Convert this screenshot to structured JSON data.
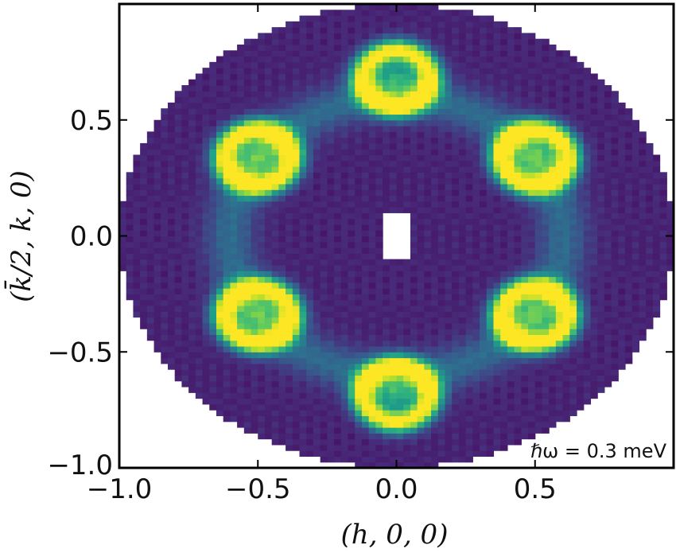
{
  "chart_data": {
    "type": "heatmap",
    "title": "",
    "xlabel": "(h, 0, 0)",
    "ylabel": "(k̄/2, k, 0)",
    "xlim": [
      -1.0,
      1.0
    ],
    "ylim": [
      -1.0,
      1.0
    ],
    "xticks": [
      {
        "value": -1.0,
        "label": "−1.0"
      },
      {
        "value": -0.5,
        "label": "−0.5"
      },
      {
        "value": 0.0,
        "label": "0.0"
      },
      {
        "value": 0.5,
        "label": "0.5"
      }
    ],
    "yticks": [
      {
        "value": -1.0,
        "label": "−1.0"
      },
      {
        "value": -0.5,
        "label": "−0.5"
      },
      {
        "value": 0.0,
        "label": "0.0"
      },
      {
        "value": 0.5,
        "label": "0.5"
      }
    ],
    "annotation": "ℏω = 0.3 meV",
    "colormap": "viridis",
    "grid": false,
    "data_region": {
      "center": [
        0.0,
        0.0
      ],
      "radius": 1.0
    },
    "masked_center": {
      "center": [
        0.0,
        0.0
      ],
      "half_width": 0.04,
      "half_height": 0.09
    },
    "peaks": [
      {
        "h": 0.0,
        "k": 0.68
      },
      {
        "h": 0.5,
        "k": 0.34
      },
      {
        "h": 0.5,
        "k": -0.34
      },
      {
        "h": 0.0,
        "k": -0.68
      },
      {
        "h": -0.5,
        "k": -0.34
      },
      {
        "h": -0.5,
        "k": 0.34
      }
    ],
    "peak_ring_radius": 0.12,
    "peak_intensity": 0.95,
    "ring_radius": 0.6,
    "ring_intensity": 0.25,
    "background_intensity": 0.1
  }
}
